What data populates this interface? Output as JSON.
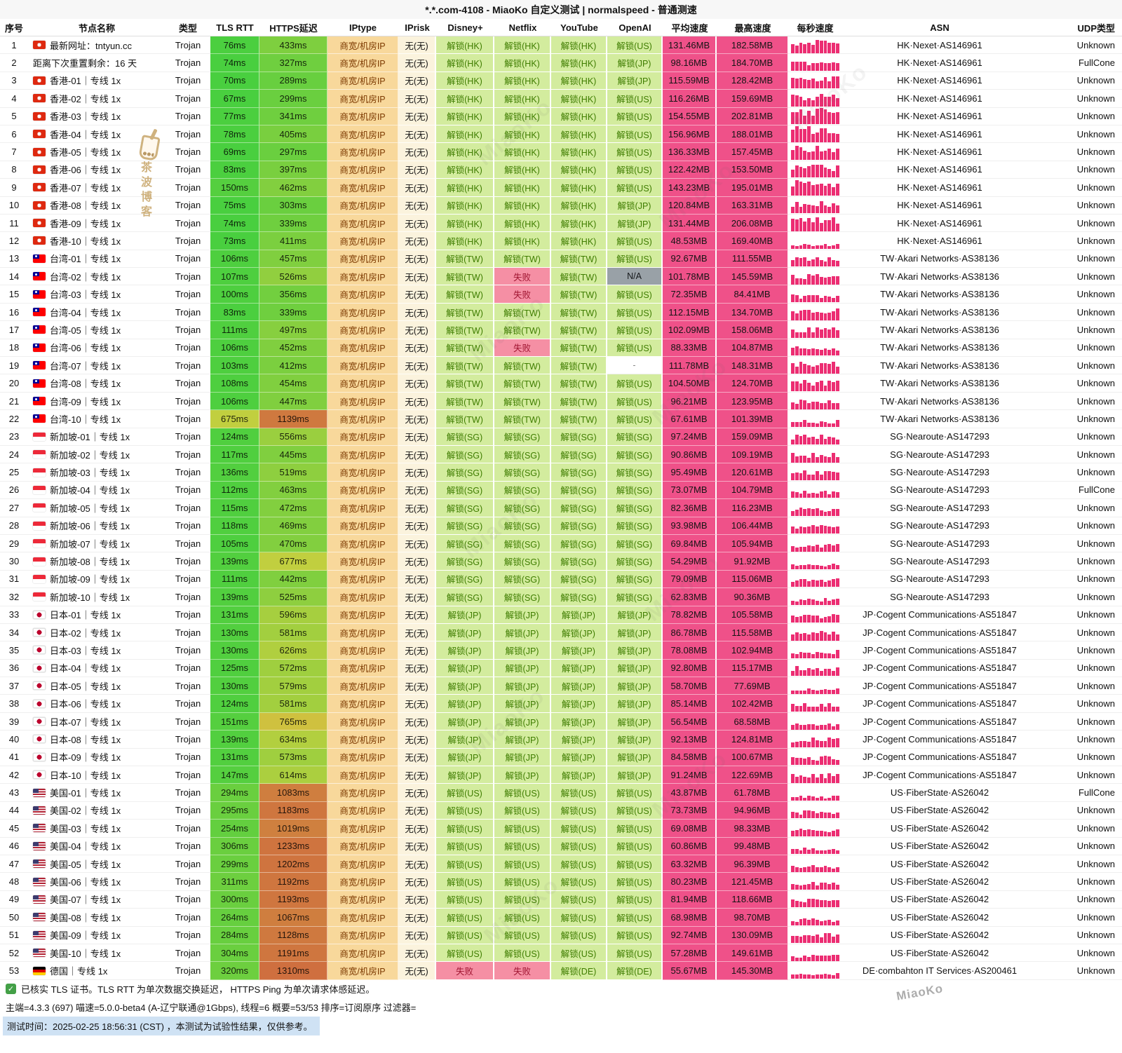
{
  "title": "*.*.com-4108 - MiaoKo 自定义测试 | normalspeed - 普通测速",
  "columns": [
    "序号",
    "节点名称",
    "类型",
    "TLS RTT",
    "HTTPS延迟",
    "IPtype",
    "IPrisk",
    "Disney+",
    "Netflix",
    "YouTube",
    "OpenAI",
    "平均速度",
    "最高速度",
    "每秒速度",
    "ASN",
    "UDP类型"
  ],
  "defaults": {
    "type": "Trojan",
    "iptype": "商宽/机房IP",
    "iprisk": "无(无)"
  },
  "asn": {
    "hk": "HK·Nexet·AS146961",
    "tw": "TW·Akari Networks·AS38136",
    "sg": "SG·Nearoute·AS147293",
    "jp": "JP·Cogent Communications·AS51847",
    "us": "US·FiberState·AS26042",
    "de": "DE·combahton IT Services·AS200461"
  },
  "row_fields": [
    "flag",
    "name",
    "tls_rtt",
    "https_latency",
    "disney",
    "netflix",
    "youtube",
    "openai",
    "avg_speed",
    "max_speed",
    "udp_type"
  ],
  "rows": [
    [
      "hk",
      "最新网址：tntyun.cc",
      "76ms",
      "433ms",
      "解锁(HK)",
      "解锁(HK)",
      "解锁(HK)",
      "解锁(US)",
      "131.46MB",
      "182.58MB",
      "Unknown"
    ],
    [
      "",
      "距离下次重置剩余：16 天",
      "74ms",
      "327ms",
      "解锁(HK)",
      "解锁(HK)",
      "解锁(HK)",
      "解锁(JP)",
      "98.16MB",
      "184.70MB",
      "FullCone"
    ],
    [
      "hk",
      "香港-01｜专线 1x",
      "70ms",
      "289ms",
      "解锁(HK)",
      "解锁(HK)",
      "解锁(HK)",
      "解锁(JP)",
      "115.59MB",
      "128.42MB",
      "Unknown"
    ],
    [
      "hk",
      "香港-02｜专线 1x",
      "67ms",
      "299ms",
      "解锁(HK)",
      "解锁(HK)",
      "解锁(HK)",
      "解锁(US)",
      "116.26MB",
      "159.69MB",
      "Unknown"
    ],
    [
      "hk",
      "香港-03｜专线 1x",
      "77ms",
      "341ms",
      "解锁(HK)",
      "解锁(HK)",
      "解锁(HK)",
      "解锁(US)",
      "154.55MB",
      "202.81MB",
      "Unknown"
    ],
    [
      "hk",
      "香港-04｜专线 1x",
      "78ms",
      "405ms",
      "解锁(HK)",
      "解锁(HK)",
      "解锁(HK)",
      "解锁(US)",
      "156.96MB",
      "188.01MB",
      "Unknown"
    ],
    [
      "hk",
      "香港-05｜专线 1x",
      "69ms",
      "297ms",
      "解锁(HK)",
      "解锁(HK)",
      "解锁(HK)",
      "解锁(US)",
      "136.33MB",
      "157.45MB",
      "Unknown"
    ],
    [
      "hk",
      "香港-06｜专线 1x",
      "83ms",
      "397ms",
      "解锁(HK)",
      "解锁(HK)",
      "解锁(HK)",
      "解锁(US)",
      "122.42MB",
      "153.50MB",
      "Unknown"
    ],
    [
      "hk",
      "香港-07｜专线 1x",
      "150ms",
      "462ms",
      "解锁(HK)",
      "解锁(HK)",
      "解锁(HK)",
      "解锁(US)",
      "143.23MB",
      "195.01MB",
      "Unknown"
    ],
    [
      "hk",
      "香港-08｜专线 1x",
      "75ms",
      "303ms",
      "解锁(HK)",
      "解锁(HK)",
      "解锁(HK)",
      "解锁(JP)",
      "120.84MB",
      "163.31MB",
      "Unknown"
    ],
    [
      "hk",
      "香港-09｜专线 1x",
      "74ms",
      "339ms",
      "解锁(HK)",
      "解锁(HK)",
      "解锁(HK)",
      "解锁(JP)",
      "131.44MB",
      "206.08MB",
      "Unknown"
    ],
    [
      "hk",
      "香港-10｜专线 1x",
      "73ms",
      "411ms",
      "解锁(HK)",
      "解锁(HK)",
      "解锁(HK)",
      "解锁(US)",
      "48.53MB",
      "169.40MB",
      "Unknown"
    ],
    [
      "tw",
      "台湾-01｜专线 1x",
      "106ms",
      "457ms",
      "解锁(TW)",
      "解锁(TW)",
      "解锁(TW)",
      "解锁(US)",
      "92.67MB",
      "111.55MB",
      "Unknown"
    ],
    [
      "tw",
      "台湾-02｜专线 1x",
      "107ms",
      "526ms",
      "解锁(TW)",
      "失败",
      "解锁(TW)",
      "N/A",
      "101.78MB",
      "145.59MB",
      "Unknown"
    ],
    [
      "tw",
      "台湾-03｜专线 1x",
      "100ms",
      "356ms",
      "解锁(TW)",
      "失败",
      "解锁(TW)",
      "解锁(US)",
      "72.35MB",
      "84.41MB",
      "Unknown"
    ],
    [
      "tw",
      "台湾-04｜专线 1x",
      "83ms",
      "339ms",
      "解锁(TW)",
      "解锁(TW)",
      "解锁(TW)",
      "解锁(US)",
      "112.15MB",
      "134.70MB",
      "Unknown"
    ],
    [
      "tw",
      "台湾-05｜专线 1x",
      "111ms",
      "497ms",
      "解锁(TW)",
      "解锁(TW)",
      "解锁(TW)",
      "解锁(US)",
      "102.09MB",
      "158.06MB",
      "Unknown"
    ],
    [
      "tw",
      "台湾-06｜专线 1x",
      "106ms",
      "452ms",
      "解锁(TW)",
      "失败",
      "解锁(TW)",
      "解锁(US)",
      "88.33MB",
      "104.87MB",
      "Unknown"
    ],
    [
      "tw",
      "台湾-07｜专线 1x",
      "103ms",
      "412ms",
      "解锁(TW)",
      "解锁(TW)",
      "解锁(TW)",
      "-",
      "111.78MB",
      "148.31MB",
      "Unknown"
    ],
    [
      "tw",
      "台湾-08｜专线 1x",
      "108ms",
      "454ms",
      "解锁(TW)",
      "解锁(TW)",
      "解锁(TW)",
      "解锁(US)",
      "104.50MB",
      "124.70MB",
      "Unknown"
    ],
    [
      "tw",
      "台湾-09｜专线 1x",
      "106ms",
      "447ms",
      "解锁(TW)",
      "解锁(TW)",
      "解锁(TW)",
      "解锁(US)",
      "96.21MB",
      "123.95MB",
      "Unknown"
    ],
    [
      "tw",
      "台湾-10｜专线 1x",
      "675ms",
      "1139ms",
      "解锁(TW)",
      "解锁(TW)",
      "解锁(TW)",
      "解锁(US)",
      "67.61MB",
      "101.39MB",
      "Unknown"
    ],
    [
      "sg",
      "新加坡-01｜专线 1x",
      "124ms",
      "556ms",
      "解锁(SG)",
      "解锁(SG)",
      "解锁(SG)",
      "解锁(SG)",
      "97.24MB",
      "159.09MB",
      "Unknown"
    ],
    [
      "sg",
      "新加坡-02｜专线 1x",
      "117ms",
      "445ms",
      "解锁(SG)",
      "解锁(SG)",
      "解锁(SG)",
      "解锁(SG)",
      "90.86MB",
      "109.19MB",
      "Unknown"
    ],
    [
      "sg",
      "新加坡-03｜专线 1x",
      "136ms",
      "519ms",
      "解锁(SG)",
      "解锁(SG)",
      "解锁(SG)",
      "解锁(SG)",
      "95.49MB",
      "120.61MB",
      "Unknown"
    ],
    [
      "sg",
      "新加坡-04｜专线 1x",
      "112ms",
      "463ms",
      "解锁(SG)",
      "解锁(SG)",
      "解锁(SG)",
      "解锁(SG)",
      "73.07MB",
      "104.79MB",
      "FullCone"
    ],
    [
      "sg",
      "新加坡-05｜专线 1x",
      "115ms",
      "472ms",
      "解锁(SG)",
      "解锁(SG)",
      "解锁(SG)",
      "解锁(SG)",
      "82.36MB",
      "116.23MB",
      "Unknown"
    ],
    [
      "sg",
      "新加坡-06｜专线 1x",
      "118ms",
      "469ms",
      "解锁(SG)",
      "解锁(SG)",
      "解锁(SG)",
      "解锁(SG)",
      "93.98MB",
      "106.44MB",
      "Unknown"
    ],
    [
      "sg",
      "新加坡-07｜专线 1x",
      "105ms",
      "470ms",
      "解锁(SG)",
      "解锁(SG)",
      "解锁(SG)",
      "解锁(SG)",
      "69.84MB",
      "105.94MB",
      "Unknown"
    ],
    [
      "sg",
      "新加坡-08｜专线 1x",
      "139ms",
      "677ms",
      "解锁(SG)",
      "解锁(SG)",
      "解锁(SG)",
      "解锁(SG)",
      "54.29MB",
      "91.92MB",
      "Unknown"
    ],
    [
      "sg",
      "新加坡-09｜专线 1x",
      "111ms",
      "442ms",
      "解锁(SG)",
      "解锁(SG)",
      "解锁(SG)",
      "解锁(SG)",
      "79.09MB",
      "115.06MB",
      "Unknown"
    ],
    [
      "sg",
      "新加坡-10｜专线 1x",
      "139ms",
      "525ms",
      "解锁(SG)",
      "解锁(SG)",
      "解锁(SG)",
      "解锁(SG)",
      "62.83MB",
      "90.36MB",
      "Unknown"
    ],
    [
      "jp",
      "日本-01｜专线 1x",
      "131ms",
      "596ms",
      "解锁(JP)",
      "解锁(JP)",
      "解锁(JP)",
      "解锁(JP)",
      "78.82MB",
      "105.58MB",
      "Unknown"
    ],
    [
      "jp",
      "日本-02｜专线 1x",
      "130ms",
      "581ms",
      "解锁(JP)",
      "解锁(JP)",
      "解锁(JP)",
      "解锁(JP)",
      "86.78MB",
      "115.58MB",
      "Unknown"
    ],
    [
      "jp",
      "日本-03｜专线 1x",
      "130ms",
      "626ms",
      "解锁(JP)",
      "解锁(JP)",
      "解锁(JP)",
      "解锁(JP)",
      "78.08MB",
      "102.94MB",
      "Unknown"
    ],
    [
      "jp",
      "日本-04｜专线 1x",
      "125ms",
      "572ms",
      "解锁(JP)",
      "解锁(JP)",
      "解锁(JP)",
      "解锁(JP)",
      "92.80MB",
      "115.17MB",
      "Unknown"
    ],
    [
      "jp",
      "日本-05｜专线 1x",
      "130ms",
      "579ms",
      "解锁(JP)",
      "解锁(JP)",
      "解锁(JP)",
      "解锁(JP)",
      "58.70MB",
      "77.69MB",
      "Unknown"
    ],
    [
      "jp",
      "日本-06｜专线 1x",
      "124ms",
      "581ms",
      "解锁(JP)",
      "解锁(JP)",
      "解锁(JP)",
      "解锁(JP)",
      "85.14MB",
      "102.42MB",
      "Unknown"
    ],
    [
      "jp",
      "日本-07｜专线 1x",
      "151ms",
      "765ms",
      "解锁(JP)",
      "解锁(JP)",
      "解锁(JP)",
      "解锁(JP)",
      "56.54MB",
      "68.58MB",
      "Unknown"
    ],
    [
      "jp",
      "日本-08｜专线 1x",
      "139ms",
      "634ms",
      "解锁(JP)",
      "解锁(JP)",
      "解锁(JP)",
      "解锁(JP)",
      "92.13MB",
      "124.81MB",
      "Unknown"
    ],
    [
      "jp",
      "日本-09｜专线 1x",
      "131ms",
      "573ms",
      "解锁(JP)",
      "解锁(JP)",
      "解锁(JP)",
      "解锁(JP)",
      "84.58MB",
      "100.67MB",
      "Unknown"
    ],
    [
      "jp",
      "日本-10｜专线 1x",
      "147ms",
      "614ms",
      "解锁(JP)",
      "解锁(JP)",
      "解锁(JP)",
      "解锁(JP)",
      "91.24MB",
      "122.69MB",
      "Unknown"
    ],
    [
      "us",
      "美国-01｜专线 1x",
      "294ms",
      "1083ms",
      "解锁(US)",
      "解锁(US)",
      "解锁(US)",
      "解锁(US)",
      "43.87MB",
      "61.78MB",
      "FullCone"
    ],
    [
      "us",
      "美国-02｜专线 1x",
      "295ms",
      "1183ms",
      "解锁(US)",
      "解锁(US)",
      "解锁(US)",
      "解锁(US)",
      "73.73MB",
      "94.96MB",
      "Unknown"
    ],
    [
      "us",
      "美国-03｜专线 1x",
      "254ms",
      "1019ms",
      "解锁(US)",
      "解锁(US)",
      "解锁(US)",
      "解锁(US)",
      "69.08MB",
      "98.33MB",
      "Unknown"
    ],
    [
      "us",
      "美国-04｜专线 1x",
      "306ms",
      "1233ms",
      "解锁(US)",
      "解锁(US)",
      "解锁(US)",
      "解锁(US)",
      "60.86MB",
      "99.48MB",
      "Unknown"
    ],
    [
      "us",
      "美国-05｜专线 1x",
      "299ms",
      "1202ms",
      "解锁(US)",
      "解锁(US)",
      "解锁(US)",
      "解锁(US)",
      "63.32MB",
      "96.39MB",
      "Unknown"
    ],
    [
      "us",
      "美国-06｜专线 1x",
      "311ms",
      "1192ms",
      "解锁(US)",
      "解锁(US)",
      "解锁(US)",
      "解锁(US)",
      "80.23MB",
      "121.45MB",
      "Unknown"
    ],
    [
      "us",
      "美国-07｜专线 1x",
      "300ms",
      "1193ms",
      "解锁(US)",
      "解锁(US)",
      "解锁(US)",
      "解锁(US)",
      "81.94MB",
      "118.66MB",
      "Unknown"
    ],
    [
      "us",
      "美国-08｜专线 1x",
      "264ms",
      "1067ms",
      "解锁(US)",
      "解锁(US)",
      "解锁(US)",
      "解锁(US)",
      "68.98MB",
      "98.70MB",
      "Unknown"
    ],
    [
      "us",
      "美国-09｜专线 1x",
      "284ms",
      "1128ms",
      "解锁(US)",
      "解锁(US)",
      "解锁(US)",
      "解锁(US)",
      "92.74MB",
      "130.09MB",
      "Unknown"
    ],
    [
      "us",
      "美国-10｜专线 1x",
      "304ms",
      "1191ms",
      "解锁(US)",
      "解锁(US)",
      "解锁(US)",
      "解锁(US)",
      "57.28MB",
      "149.61MB",
      "Unknown"
    ],
    [
      "de",
      "德国｜专线 1x",
      "320ms",
      "1310ms",
      "失败",
      "失败",
      "解锁(DE)",
      "解锁(DE)",
      "55.67MB",
      "145.30MB",
      "Unknown"
    ]
  ],
  "footer": {
    "line1": "已核实 TLS 证书。TLS RTT 为单次数据交换延迟， HTTPS Ping 为单次请求体感延迟。",
    "line2": "主端=4.3.3 (697) 喵速=5.0.0-beta4 (A-辽宁联通@1Gbps), 线程=6 概要=53/53 排序=订阅原序 过滤器=",
    "line3": "测试时间：2025-02-25 18:56:31 (CST) ，本测试为试验性结果，仅供参考。"
  },
  "watermark": {
    "text": "MiaoKo",
    "logo": "茶波博客"
  },
  "colors": {
    "speed_cell": "#ef5189",
    "spark_bar": "#ec2d72",
    "unlock_bg": "#d3ec9e",
    "unlock_text": "#3f7d00",
    "fail_bg": "#f58fa4",
    "fail_text": "#a01531",
    "na_bg": "#99a1a7",
    "iptype_bg": "#f8d89b",
    "iptype_text": "#7c3900",
    "iprisk_bg": "#fbf3dd",
    "check_green": "#43a047",
    "highlight_blue": "#cfe2f4"
  }
}
